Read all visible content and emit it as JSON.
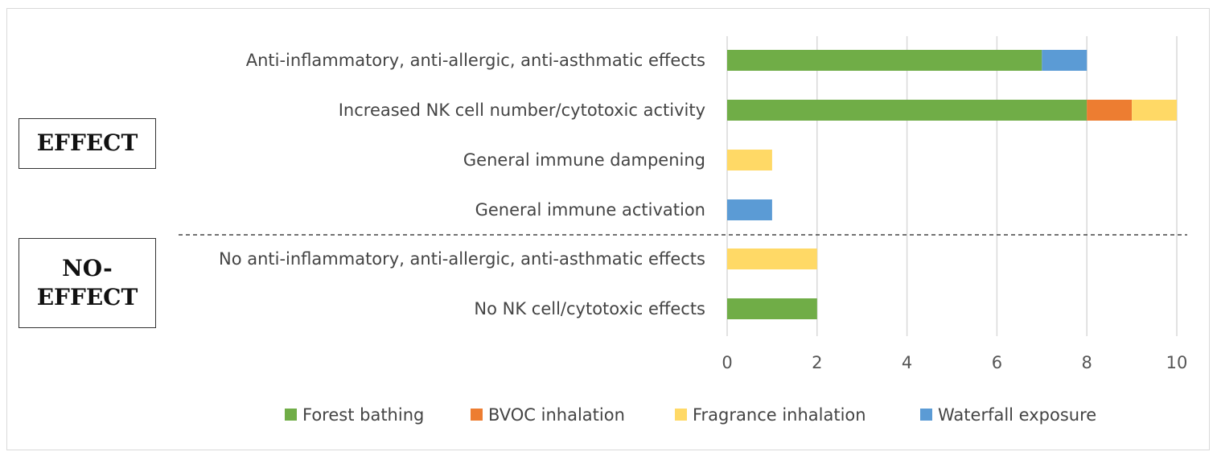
{
  "chart_data": {
    "type": "bar",
    "orientation": "horizontal",
    "stacked": true,
    "categories": [
      "Anti-inflammatory, anti-allergic, anti-asthmatic effects",
      "Increased NK cell number/cytotoxic activity",
      "General immune dampening",
      "General immune activation",
      "No anti-inflammatory, anti-allergic, anti-asthmatic effects",
      "No NK cell/cytotoxic effects"
    ],
    "series": [
      {
        "name": "Forest bathing",
        "color": "#70ad47",
        "values": [
          7,
          8,
          0,
          0,
          0,
          2
        ]
      },
      {
        "name": "BVOC inhalation",
        "color": "#ed7d31",
        "values": [
          0,
          1,
          0,
          0,
          0,
          0
        ]
      },
      {
        "name": "Fragrance inhalation",
        "color": "#ffd966",
        "values": [
          0,
          1,
          1,
          0,
          2,
          0
        ]
      },
      {
        "name": "Waterfall exposure",
        "color": "#5b9bd5",
        "values": [
          1,
          0,
          0,
          1,
          0,
          0
        ]
      }
    ],
    "xlim": [
      0,
      10
    ],
    "xticks": [
      0,
      2,
      4,
      6,
      8,
      10
    ],
    "grid": "vertical",
    "legend": "bottom",
    "groups": [
      {
        "label": "EFFECT",
        "categories": [
          0,
          1,
          2,
          3
        ]
      },
      {
        "label": "NO-EFFECT",
        "categories": [
          4,
          5
        ]
      }
    ]
  }
}
